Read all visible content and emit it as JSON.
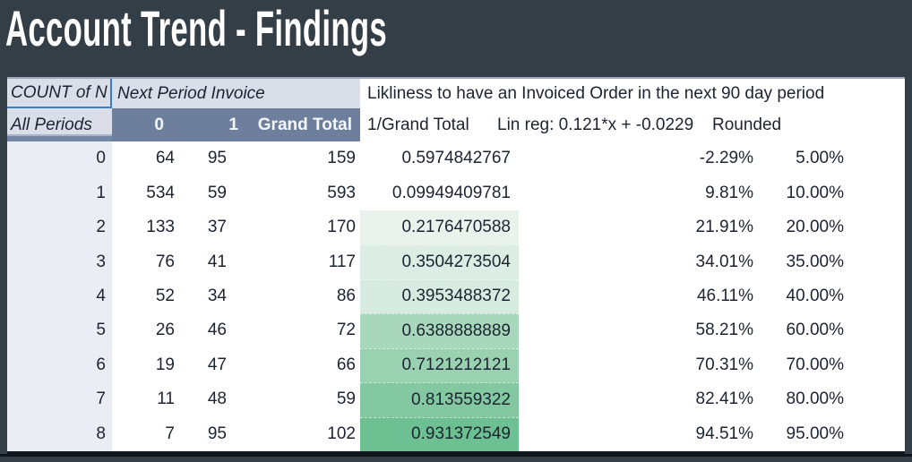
{
  "slide": {
    "title": "Account Trend - Findings"
  },
  "table": {
    "corner_label": "COUNT of N",
    "column_group_header": "Next Period Invoice",
    "likeliness_header": "Likliness to have an Invoiced Order in the next 90 day period",
    "row_group_label": "All Periods",
    "value_columns": [
      "0",
      "1",
      "Grand Total"
    ],
    "calc_columns": [
      "1/Grand Total",
      "Lin reg: 0.121*x + -0.0229",
      "Rounded"
    ],
    "rows": [
      [
        "0",
        "64",
        "95",
        "159",
        "0.5974842767",
        "-2.29%",
        "5.00%"
      ],
      [
        "1",
        "534",
        "59",
        "593",
        "0.09949409781",
        "9.81%",
        "10.00%"
      ],
      [
        "2",
        "133",
        "37",
        "170",
        "0.2176470588",
        "21.91%",
        "20.00%"
      ],
      [
        "3",
        "76",
        "41",
        "117",
        "0.3504273504",
        "34.01%",
        "35.00%"
      ],
      [
        "4",
        "52",
        "34",
        "86",
        "0.3953488372",
        "46.11%",
        "40.00%"
      ],
      [
        "5",
        "26",
        "46",
        "72",
        "0.6388888889",
        "58.21%",
        "60.00%"
      ],
      [
        "6",
        "19",
        "47",
        "66",
        "0.7121212121",
        "70.31%",
        "70.00%"
      ],
      [
        "7",
        "11",
        "48",
        "59",
        "0.813559322",
        "82.41%",
        "80.00%"
      ],
      [
        "8",
        "7",
        "95",
        "102",
        "0.931372549",
        "94.51%",
        "95.00%"
      ]
    ],
    "ratio_cell_colors": [
      "#FFFFFF",
      "#FFFFFF",
      "#E9F3EC",
      "#DCEDE3",
      "#D8EBE0",
      "#A8D7BC",
      "#9AD2B1",
      "#83C8A1",
      "#6CC092"
    ]
  },
  "colors": {
    "slide_background": "#343E47",
    "header_fill": "#D9DEE8",
    "pivot_header_fill": "#6E7F9D",
    "row_label_fill": "#EAEEF4",
    "selection_border_blue": "#3F7DC2",
    "text_dark": "#1C2431",
    "text_light": "#F4F7FA",
    "color_scale_low": "#FFFFFF",
    "color_scale_high": "#6CC092"
  }
}
